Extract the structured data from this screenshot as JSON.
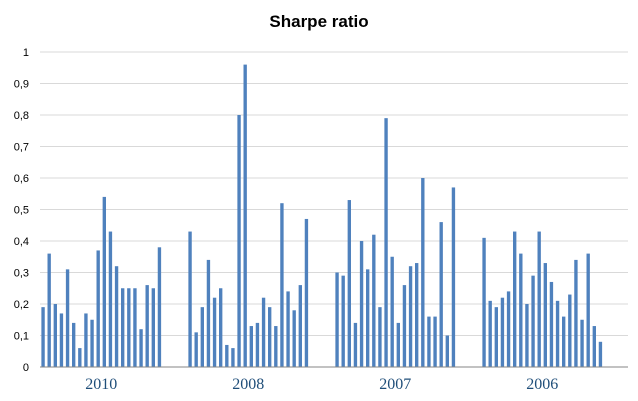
{
  "chart_data": {
    "type": "bar",
    "title": "Sharpe ratio",
    "xlabel": "",
    "ylabel": "",
    "ylim": [
      0,
      1
    ],
    "yticks": [
      "0",
      "0,1",
      "0,2",
      "0,3",
      "0,4",
      "0,5",
      "0,6",
      "0,7",
      "0,8",
      "0,9",
      "1"
    ],
    "grid": true,
    "legend": "none",
    "bar_color": "#4f81bd",
    "groups": [
      {
        "label": "2010",
        "values": [
          0.19,
          0.36,
          0.2,
          0.17,
          0.31,
          0.14,
          0.06,
          0.17,
          0.15,
          0.37,
          0.54,
          0.43,
          0.32,
          0.25,
          0.25,
          0.25,
          0.12,
          0.26,
          0.25,
          0.38
        ]
      },
      {
        "label": "2008",
        "values": [
          0.43,
          0.11,
          0.19,
          0.34,
          0.22,
          0.25,
          0.07,
          0.06,
          0.8,
          0.96,
          0.13,
          0.14,
          0.22,
          0.19,
          0.13,
          0.52,
          0.24,
          0.18,
          0.26,
          0.47
        ]
      },
      {
        "label": "2007",
        "values": [
          0.3,
          0.29,
          0.53,
          0.14,
          0.4,
          0.31,
          0.42,
          0.19,
          0.79,
          0.35,
          0.14,
          0.26,
          0.32,
          0.33,
          0.6,
          0.16,
          0.16,
          0.46,
          0.1,
          0.57
        ]
      },
      {
        "label": "2006",
        "values": [
          0.41,
          0.21,
          0.19,
          0.22,
          0.24,
          0.43,
          0.36,
          0.2,
          0.29,
          0.43,
          0.33,
          0.27,
          0.21,
          0.16,
          0.23,
          0.34,
          0.15,
          0.36,
          0.13,
          0.08
        ]
      }
    ]
  }
}
